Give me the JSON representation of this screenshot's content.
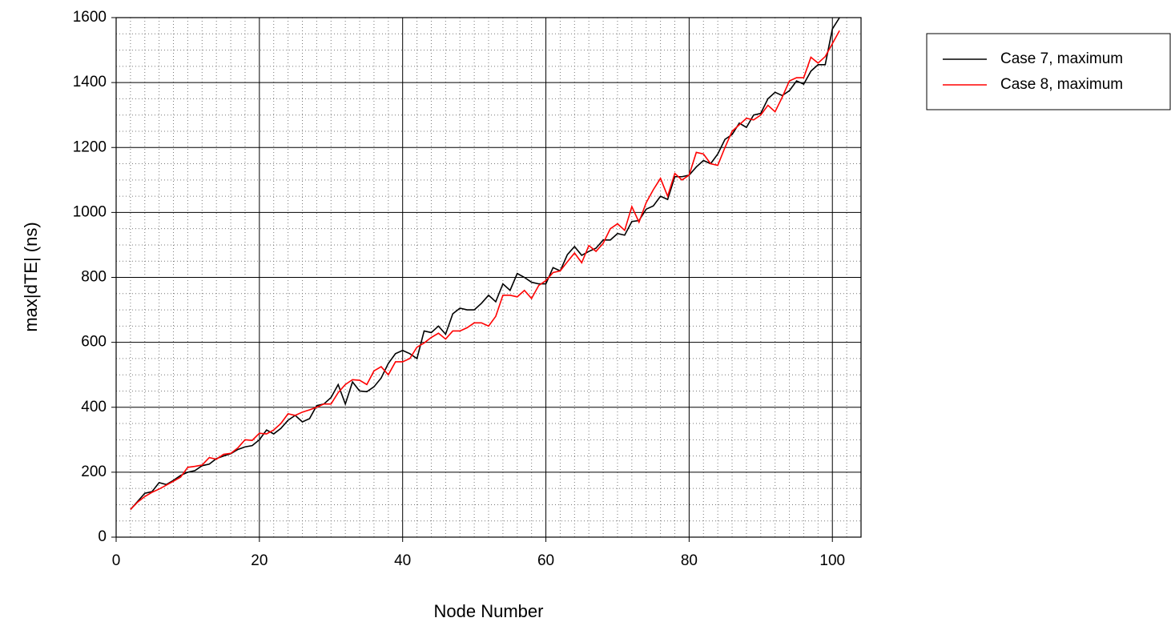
{
  "chart_data": {
    "type": "line",
    "xlabel": "Node Number",
    "ylabel": "max|dTE| (ns)",
    "x": [
      2,
      3,
      4,
      5,
      6,
      7,
      8,
      9,
      10,
      11,
      12,
      13,
      14,
      15,
      16,
      17,
      18,
      19,
      20,
      21,
      22,
      23,
      24,
      25,
      26,
      27,
      28,
      29,
      30,
      31,
      32,
      33,
      34,
      35,
      36,
      37,
      38,
      39,
      40,
      41,
      42,
      43,
      44,
      45,
      46,
      47,
      48,
      49,
      50,
      51,
      52,
      53,
      54,
      55,
      56,
      57,
      58,
      59,
      60,
      61,
      62,
      63,
      64,
      65,
      66,
      67,
      68,
      69,
      70,
      71,
      72,
      73,
      74,
      75,
      76,
      77,
      78,
      79,
      80,
      81,
      82,
      83,
      84,
      85,
      86,
      87,
      88,
      89,
      90,
      91,
      92,
      93,
      94,
      95,
      96,
      97,
      98,
      99,
      100,
      101
    ],
    "series": [
      {
        "name": "Case 7, maximum",
        "color": "#000000",
        "values": [
          85,
          110,
          135,
          140,
          168,
          162,
          175,
          190,
          200,
          205,
          220,
          225,
          242,
          250,
          257,
          270,
          278,
          282,
          300,
          330,
          318,
          335,
          360,
          375,
          355,
          365,
          405,
          410,
          430,
          470,
          410,
          478,
          450,
          448,
          463,
          490,
          535,
          565,
          575,
          565,
          550,
          635,
          630,
          650,
          625,
          688,
          705,
          700,
          700,
          720,
          745,
          725,
          780,
          760,
          812,
          800,
          785,
          780,
          780,
          830,
          820,
          870,
          895,
          868,
          880,
          890,
          915,
          915,
          935,
          930,
          972,
          975,
          1010,
          1020,
          1050,
          1040,
          1110,
          1110,
          1115,
          1140,
          1160,
          1150,
          1180,
          1225,
          1240,
          1275,
          1262,
          1300,
          1305,
          1350,
          1370,
          1360,
          1375,
          1405,
          1395,
          1435,
          1455,
          1455,
          1565,
          1600
        ]
      },
      {
        "name": "Case 8, maximum",
        "color": "#ff0000",
        "values": [
          85,
          108,
          125,
          138,
          148,
          160,
          172,
          185,
          215,
          218,
          222,
          245,
          240,
          255,
          258,
          275,
          300,
          298,
          320,
          318,
          330,
          350,
          380,
          375,
          385,
          392,
          400,
          410,
          410,
          445,
          470,
          485,
          483,
          470,
          512,
          525,
          500,
          540,
          540,
          550,
          585,
          598,
          615,
          628,
          610,
          635,
          635,
          645,
          660,
          660,
          650,
          680,
          745,
          745,
          740,
          760,
          735,
          775,
          790,
          815,
          820,
          848,
          875,
          845,
          898,
          880,
          905,
          950,
          965,
          945,
          1018,
          970,
          1030,
          1070,
          1105,
          1050,
          1120,
          1100,
          1115,
          1185,
          1180,
          1150,
          1145,
          1200,
          1250,
          1270,
          1290,
          1285,
          1300,
          1330,
          1310,
          1355,
          1405,
          1415,
          1415,
          1478,
          1460,
          1480,
          1520,
          1560
        ]
      }
    ],
    "xlim": [
      0,
      104
    ],
    "xticks": [
      0,
      20,
      40,
      60,
      80,
      100
    ],
    "ylim": [
      0,
      1600
    ],
    "yticks": [
      0,
      200,
      400,
      600,
      800,
      1000,
      1200,
      1400,
      1600
    ],
    "grid": true,
    "minor_grid": true,
    "legend": "outside-right"
  }
}
